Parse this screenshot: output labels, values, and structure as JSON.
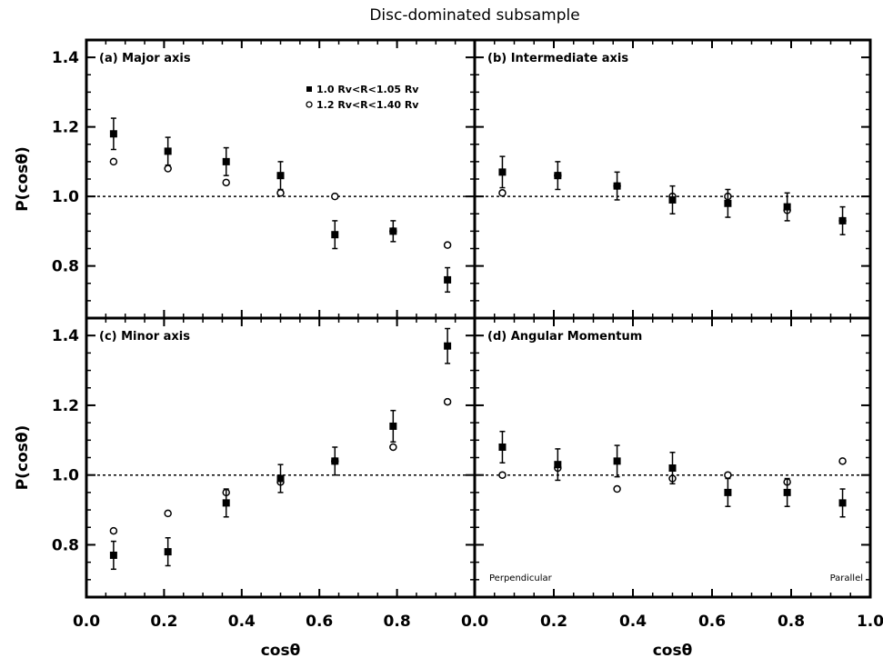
{
  "title": "Disc-dominated subsample",
  "xlabel": "cosθ",
  "ylabel": "P(cosθ)",
  "legend": {
    "filled": "1.0 Rv<R<1.05 Rv",
    "open": "1.2 Rv<R<1.40 Rv"
  },
  "annotations": {
    "perpendicular": "Perpendicular",
    "parallel": "Parallel"
  },
  "colors": {
    "ink": "#000000",
    "background": "#ffffff"
  },
  "chart_data": {
    "type": "scatter",
    "x": [
      0.07,
      0.21,
      0.36,
      0.5,
      0.64,
      0.79,
      0.93
    ],
    "xlim": [
      0.0,
      1.0
    ],
    "ylim": [
      0.65,
      1.45
    ],
    "xticks": [
      "0.0",
      "0.2",
      "0.4",
      "0.6",
      "0.8",
      "1.0"
    ],
    "xticks_right": [
      "0.0",
      "0.2",
      "0.4",
      "0.6",
      "0.8",
      "1.0"
    ],
    "xticks_left": [
      "0.0",
      "0.2",
      "0.4",
      "0.6",
      "0.8",
      "0.0"
    ],
    "yticks": [
      "0.8",
      "1.0",
      "1.2",
      "1.4"
    ],
    "reference_line": 1.0,
    "grid": false,
    "panels": [
      {
        "label": "(a) Major axis",
        "filled": {
          "values": [
            1.18,
            1.13,
            1.1,
            1.06,
            0.89,
            0.9,
            0.76
          ],
          "errors": [
            0.045,
            0.04,
            0.04,
            0.04,
            0.04,
            0.03,
            0.035
          ]
        },
        "open": {
          "values": [
            1.1,
            1.08,
            1.04,
            1.01,
            1.0,
            0.9,
            0.86
          ]
        }
      },
      {
        "label": "(b) Intermediate axis",
        "filled": {
          "values": [
            1.07,
            1.06,
            1.03,
            0.99,
            0.98,
            0.97,
            0.93
          ],
          "errors": [
            0.045,
            0.04,
            0.04,
            0.04,
            0.04,
            0.04,
            0.04
          ]
        },
        "open": {
          "values": [
            1.01,
            1.06,
            1.03,
            1.0,
            1.0,
            0.96,
            0.93
          ]
        }
      },
      {
        "label": "(c) Minor axis",
        "filled": {
          "values": [
            0.77,
            0.78,
            0.92,
            0.99,
            1.04,
            1.14,
            1.37
          ],
          "errors": [
            0.04,
            0.04,
            0.04,
            0.04,
            0.04,
            0.045,
            0.05
          ]
        },
        "open": {
          "values": [
            0.84,
            0.89,
            0.95,
            0.98,
            1.04,
            1.08,
            1.21
          ]
        }
      },
      {
        "label": "(d) Angular Momentum",
        "filled": {
          "values": [
            1.08,
            1.03,
            1.04,
            1.02,
            0.95,
            0.95,
            0.92
          ],
          "errors": [
            0.045,
            0.045,
            0.045,
            0.045,
            0.04,
            0.04,
            0.04
          ]
        },
        "open": {
          "values": [
            1.0,
            1.02,
            0.96,
            0.99,
            1.0,
            0.98,
            1.04
          ]
        }
      }
    ]
  }
}
